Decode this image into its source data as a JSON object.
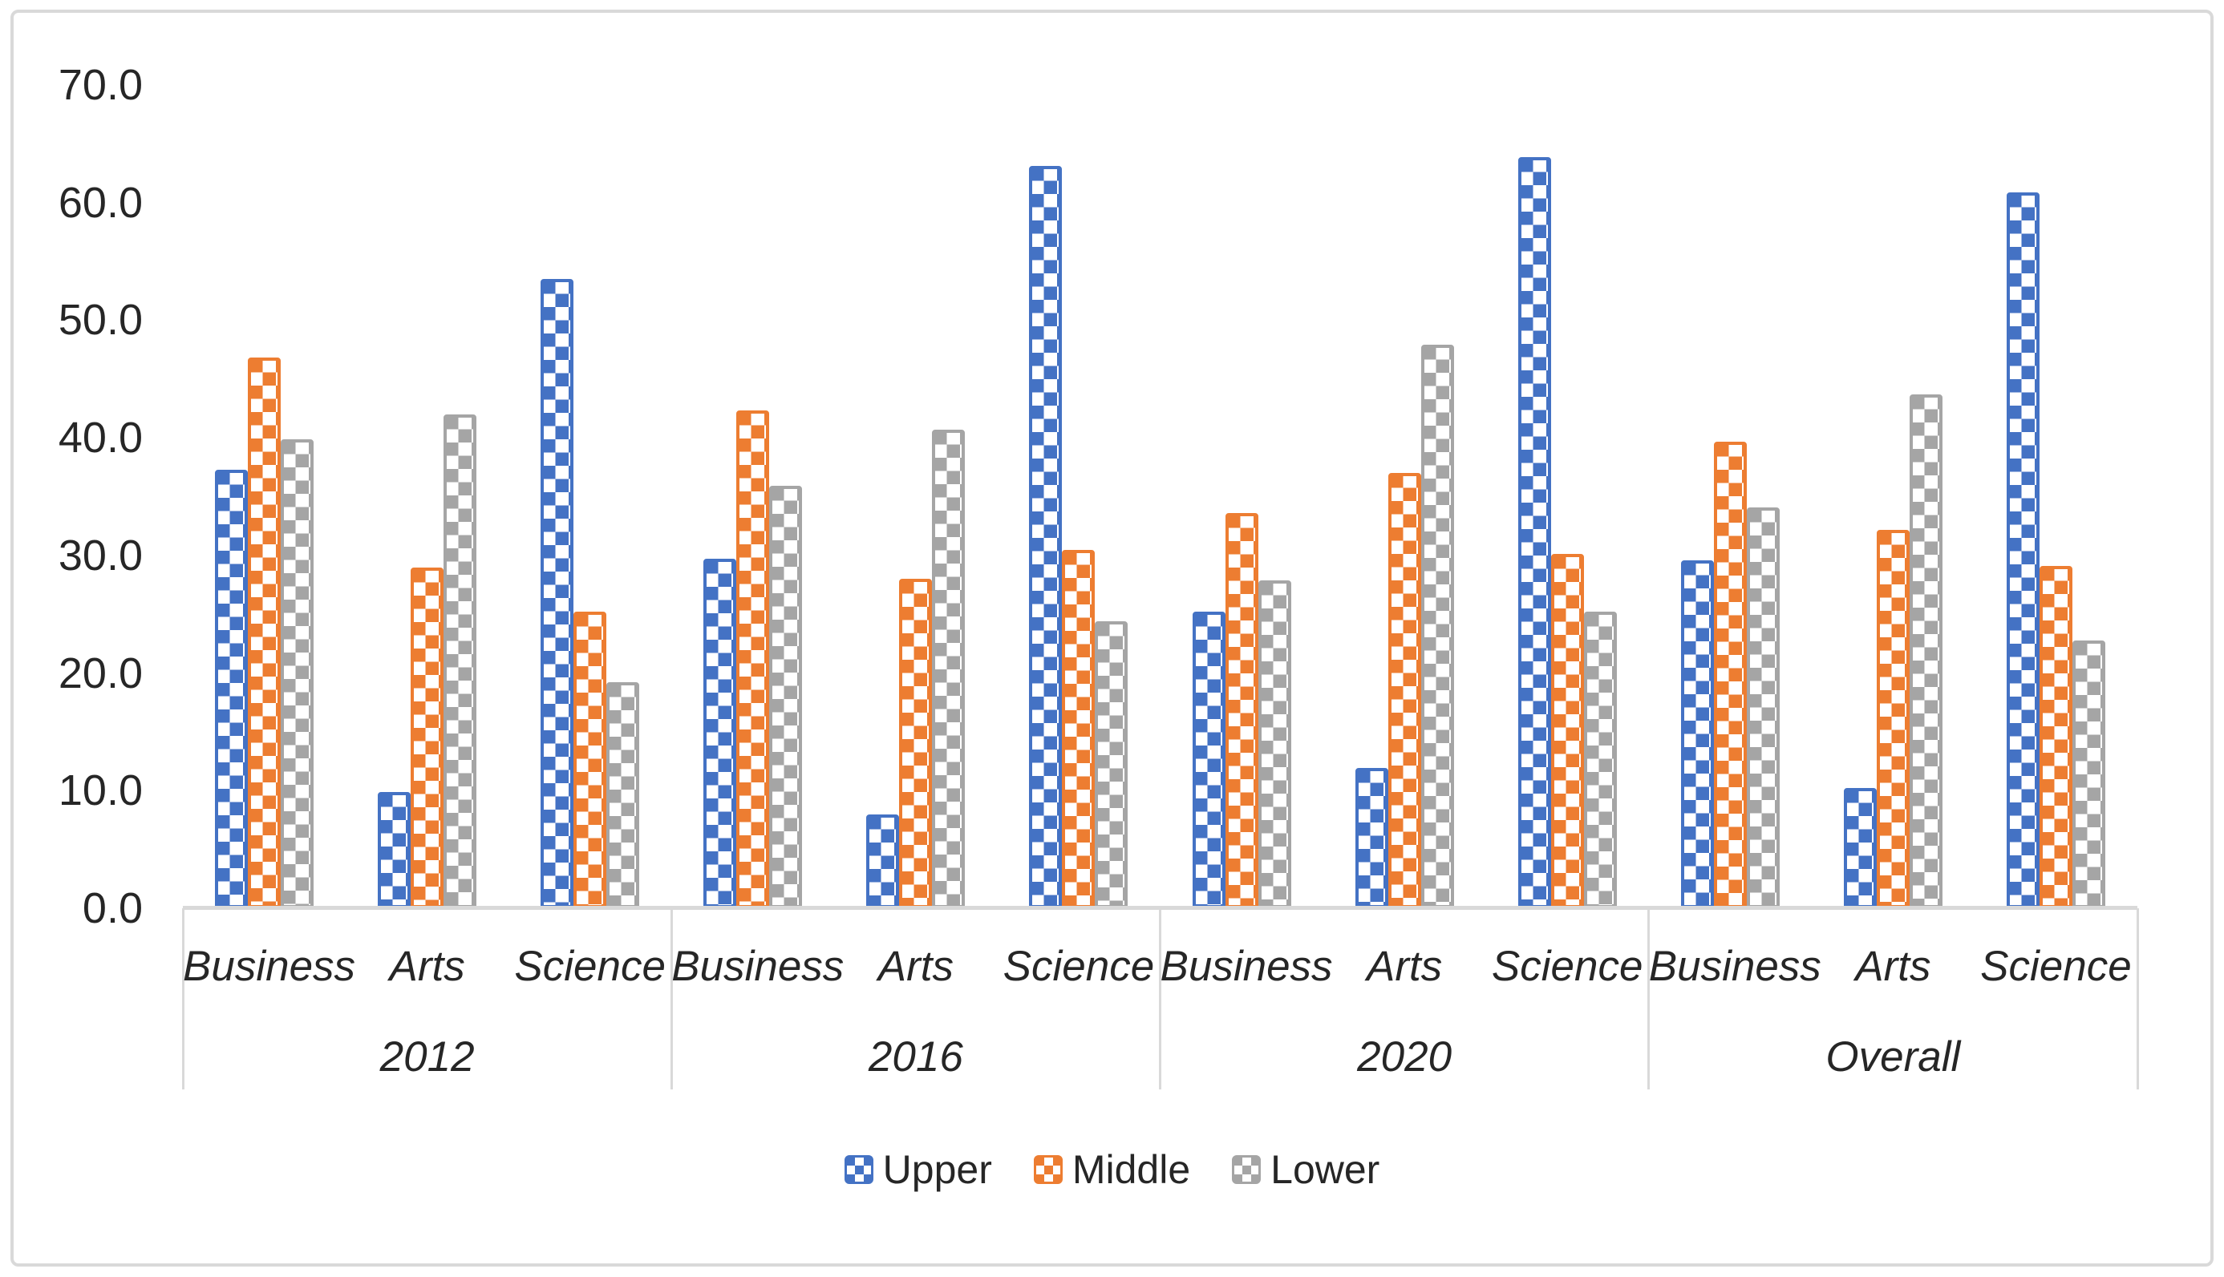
{
  "figure": {
    "border_color": "#D9D9D9",
    "background": "#ffffff",
    "text_color": "#262626"
  },
  "chart_data": {
    "type": "bar",
    "title": "",
    "xlabel": "",
    "ylabel": "",
    "ylim": [
      0,
      70
    ],
    "y_tick_step": 10,
    "y_tick_labels": [
      "0.0",
      "10.0",
      "20.0",
      "30.0",
      "40.0",
      "50.0",
      "60.0",
      "70.0"
    ],
    "grid": false,
    "legend_position": "bottom",
    "groups": [
      "2012",
      "2016",
      "2020",
      "Overall"
    ],
    "categories": [
      "Business",
      "Arts",
      "Science"
    ],
    "series": [
      {
        "name": "Upper",
        "color": "#4472C4",
        "pattern": "checker",
        "values": [
          [
            37.3,
            9.9,
            53.5
          ],
          [
            29.7,
            8.0,
            63.1
          ],
          [
            25.2,
            11.9,
            63.9
          ],
          [
            29.6,
            10.2,
            60.9
          ]
        ]
      },
      {
        "name": "Middle",
        "color": "#ED7D31",
        "pattern": "checker",
        "values": [
          [
            46.8,
            29.0,
            25.2
          ],
          [
            42.3,
            28.0,
            30.5
          ],
          [
            33.6,
            37.0,
            30.1
          ],
          [
            39.7,
            32.2,
            29.1
          ]
        ]
      },
      {
        "name": "Lower",
        "color": "#A5A5A5",
        "pattern": "checker",
        "values": [
          [
            39.9,
            42.0,
            19.2
          ],
          [
            35.9,
            40.7,
            24.4
          ],
          [
            27.9,
            47.9,
            25.2
          ],
          [
            34.1,
            43.7,
            22.8
          ]
        ]
      }
    ],
    "axis_line_color": "#D9D9D9"
  }
}
